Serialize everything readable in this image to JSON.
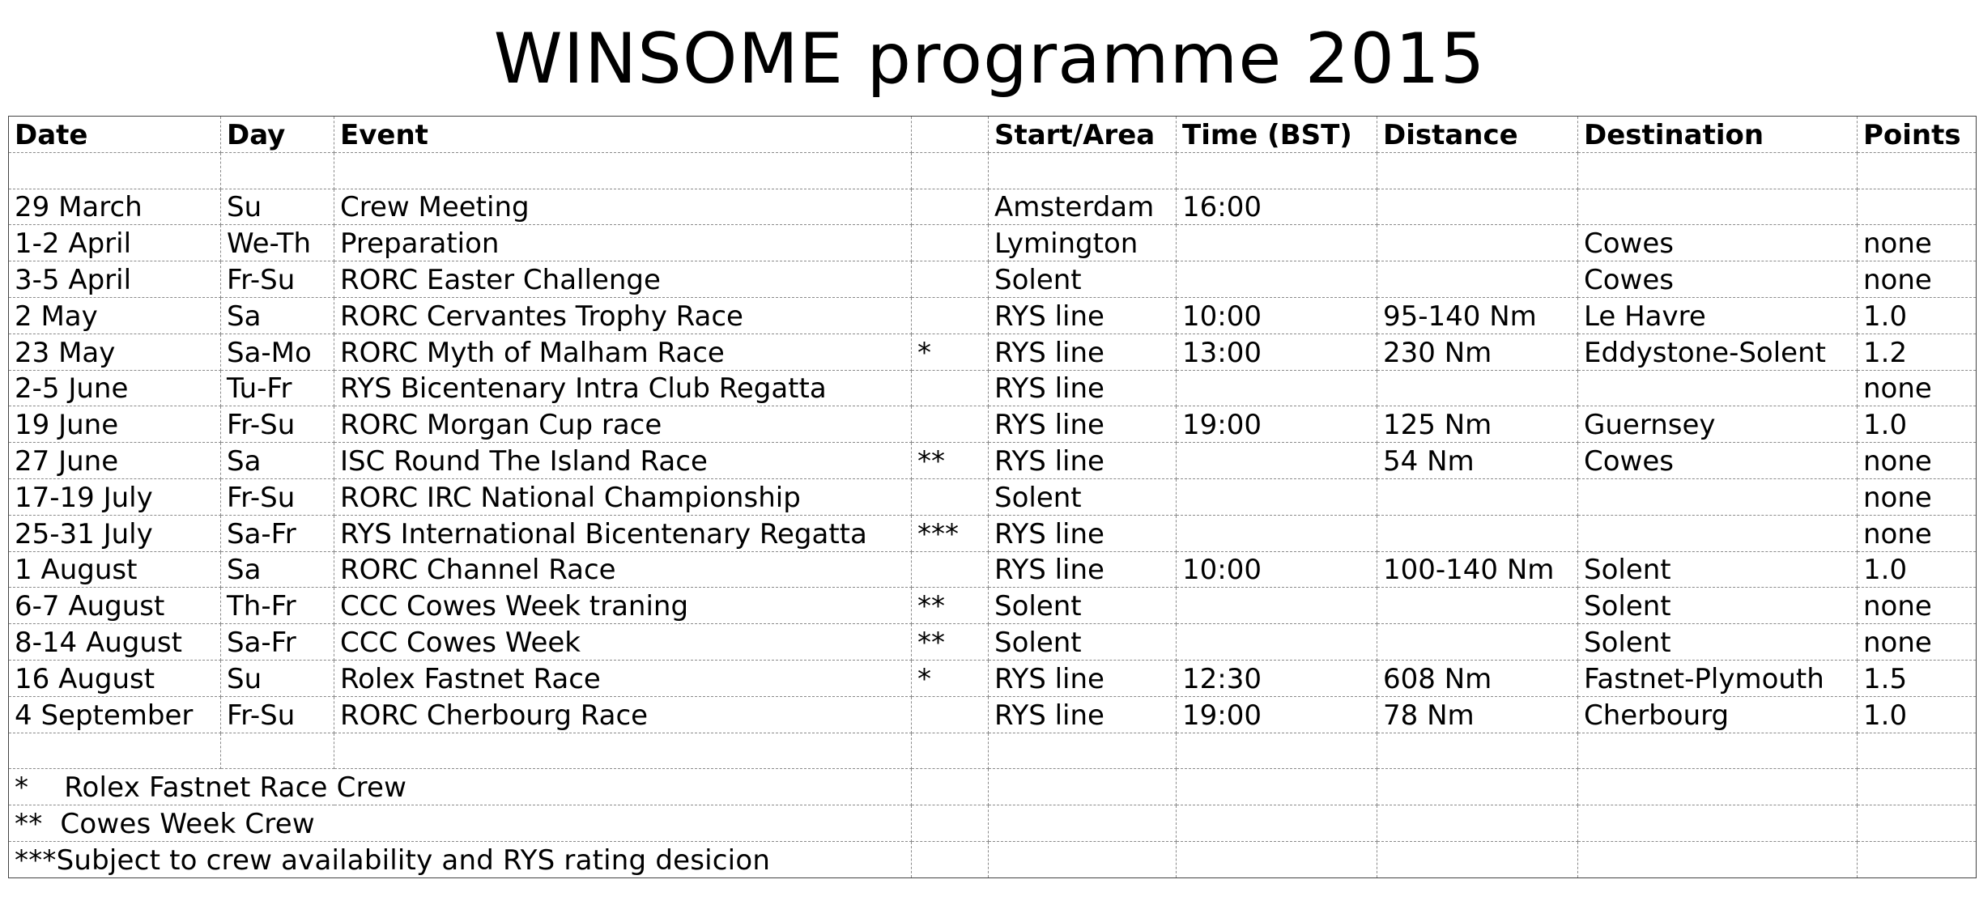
{
  "title": "WINSOME programme 2015",
  "headers": {
    "date": "Date",
    "day": "Day",
    "event": "Event",
    "crew": "",
    "start": "Start/Area",
    "time": "Time (BST)",
    "distance": "Distance",
    "destination": "Destination",
    "points": "Points"
  },
  "rows": [
    {
      "date": "29 March",
      "day": "Su",
      "event": "Crew Meeting",
      "crew": "",
      "start": "Amsterdam",
      "time": "16:00",
      "distance": "",
      "destination": "",
      "points": ""
    },
    {
      "date": "1-2 April",
      "day": "We-Th",
      "event": "Preparation",
      "crew": "",
      "start": "Lymington",
      "time": "",
      "distance": "",
      "destination": "Cowes",
      "points": "none"
    },
    {
      "date": "3-5 April",
      "day": "Fr-Su",
      "event": "RORC Easter Challenge",
      "crew": "",
      "start": "Solent",
      "time": "",
      "distance": "",
      "destination": "Cowes",
      "points": "none"
    },
    {
      "date": "2 May",
      "day": "Sa",
      "event": "RORC Cervantes Trophy Race",
      "crew": "",
      "start": "RYS line",
      "time": "10:00",
      "distance": "95-140 Nm",
      "destination": "Le Havre",
      "points": "1.0"
    },
    {
      "date": "23 May",
      "day": "Sa-Mo",
      "event": "RORC Myth of Malham Race",
      "crew": "*",
      "start": "RYS line",
      "time": "13:00",
      "distance": "230 Nm",
      "destination": "Eddystone-Solent",
      "points": "1.2"
    },
    {
      "date": "2-5 June",
      "day": "Tu-Fr",
      "event": "RYS Bicentenary Intra Club Regatta",
      "crew": "",
      "start": "RYS line",
      "time": "",
      "distance": "",
      "destination": "",
      "points": "none"
    },
    {
      "date": "19 June",
      "day": "Fr-Su",
      "event": "RORC Morgan Cup race",
      "crew": "",
      "start": "RYS line",
      "time": "19:00",
      "distance": "125 Nm",
      "destination": "Guernsey",
      "points": "1.0"
    },
    {
      "date": "27 June",
      "day": "Sa",
      "event": "ISC Round The Island Race",
      "crew": "**",
      "start": "RYS line",
      "time": "",
      "distance": "54 Nm",
      "destination": "Cowes",
      "points": "none"
    },
    {
      "date": "17-19 July",
      "day": "Fr-Su",
      "event": "RORC IRC National Championship",
      "crew": "",
      "start": "Solent",
      "time": "",
      "distance": "",
      "destination": "",
      "points": "none"
    },
    {
      "date": "25-31 July",
      "day": "Sa-Fr",
      "event": "RYS International Bicentenary Regatta",
      "crew": "***",
      "start": "RYS line",
      "time": "",
      "distance": "",
      "destination": "",
      "points": "none"
    },
    {
      "date": "1 August",
      "day": "Sa",
      "event": "RORC Channel Race",
      "crew": "",
      "start": "RYS line",
      "time": "10:00",
      "distance": "100-140 Nm",
      "destination": "Solent",
      "points": "1.0"
    },
    {
      "date": "6-7 August",
      "day": "Th-Fr",
      "event": "CCC Cowes Week traning",
      "crew": "**",
      "start": "Solent",
      "time": "",
      "distance": "",
      "destination": "Solent",
      "points": "none"
    },
    {
      "date": "8-14 August",
      "day": "Sa-Fr",
      "event": "CCC Cowes Week",
      "crew": "**",
      "start": "Solent",
      "time": "",
      "distance": "",
      "destination": "Solent",
      "points": "none"
    },
    {
      "date": "16 August",
      "day": "Su",
      "event": "Rolex Fastnet Race",
      "crew": "*",
      "start": "RYS line",
      "time": "12:30",
      "distance": "608 Nm",
      "destination": "Fastnet-Plymouth",
      "points": "1.5"
    },
    {
      "date": "4 September",
      "day": "Fr-Su",
      "event": "RORC Cherbourg Race",
      "crew": "",
      "start": "RYS line",
      "time": "19:00",
      "distance": "78 Nm",
      "destination": "Cherbourg",
      "points": "1.0"
    }
  ],
  "notes": [
    "*    Rolex Fastnet Race Crew",
    "**  Cowes Week Crew",
    "***Subject to crew availability and RYS rating desicion"
  ]
}
